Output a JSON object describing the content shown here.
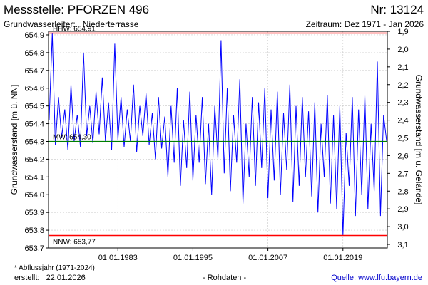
{
  "header": {
    "title": "Messstelle: PFORZEN 496",
    "nr": "Nr: 13124",
    "aquifer_label": "Grundwasserleiter:",
    "aquifer_value": "Niederterrasse",
    "period": "Zeitraum: Dez 1971 - Jan 2026"
  },
  "footer": {
    "note": "* Abflussjahr (1971-2024)",
    "created_label": "erstellt:",
    "created_date": "22.01.2026",
    "rawdata": "- Rohdaten -",
    "source_label": "Quelle:",
    "source_url": "www.lfu.bayern.de"
  },
  "colors": {
    "series": "#0000ff",
    "hhw_line": "#ff0000",
    "nnw_line": "#ff0000",
    "mw_line": "#008000",
    "grid": "#c8c8c8"
  },
  "chart_data": {
    "type": "line",
    "ylabel_left": "Grundwasserstand [m ü. NN]",
    "ylabel_right": "Grundwasserstand [m u. Gelände]",
    "ylim_left": [
      653.7,
      654.92
    ],
    "ylim_right": [
      3.12,
      1.9
    ],
    "xlim": [
      1971.9,
      2026.1
    ],
    "grid": true,
    "y_ticks_left": [
      "653,7",
      "653,8",
      "653,9",
      "654,0",
      "654,1",
      "654,2",
      "654,3",
      "654,4",
      "654,5",
      "654,6",
      "654,7",
      "654,8",
      "654,9"
    ],
    "y_ticks_right": [
      "1,9",
      "2,0",
      "2,1",
      "2,2",
      "2,3",
      "2,4",
      "2,5",
      "2,6",
      "2,7",
      "2,8",
      "2,9",
      "3,0",
      "3,1"
    ],
    "x_ticks": [
      {
        "label": "01.01.1983",
        "x": 1983.0
      },
      {
        "label": "01.01.1995",
        "x": 1995.0
      },
      {
        "label": "01.01.2007",
        "x": 2007.0
      },
      {
        "label": "01.01.2019",
        "x": 2019.0
      }
    ],
    "reference_lines": [
      {
        "label": "HHW: 654,91",
        "y": 654.91
      },
      {
        "label": "MW: 654,30",
        "y": 654.3
      },
      {
        "label": "NNW: 653,77",
        "y": 653.77
      }
    ],
    "series": [
      {
        "x": [
          1972.0,
          1972.5,
          1973.0,
          1973.5,
          1974.0,
          1974.5,
          1975.0,
          1975.5,
          1976.0,
          1976.5,
          1977.0,
          1977.5,
          1978.0,
          1978.5,
          1979.0,
          1979.5,
          1980.0,
          1980.5,
          1981.0,
          1981.5,
          1982.0,
          1982.5,
          1983.0,
          1983.5,
          1984.0,
          1984.5,
          1985.0,
          1985.5,
          1986.0,
          1986.5,
          1987.0,
          1987.5,
          1988.0,
          1988.5,
          1989.0,
          1989.5,
          1990.0,
          1990.5,
          1991.0,
          1991.5,
          1992.0,
          1992.5,
          1993.0,
          1993.5,
          1994.0,
          1994.5,
          1995.0,
          1995.5,
          1996.0,
          1996.5,
          1997.0,
          1997.5,
          1998.0,
          1998.5,
          1999.0,
          1999.5,
          2000.0,
          2000.5,
          2001.0,
          2001.5,
          2002.0,
          2002.5,
          2003.0,
          2003.5,
          2004.0,
          2004.5,
          2005.0,
          2005.5,
          2006.0,
          2006.5,
          2007.0,
          2007.5,
          2008.0,
          2008.5,
          2009.0,
          2009.5,
          2010.0,
          2010.5,
          2011.0,
          2011.5,
          2012.0,
          2012.5,
          2013.0,
          2013.5,
          2014.0,
          2014.5,
          2015.0,
          2015.5,
          2016.0,
          2016.5,
          2017.0,
          2017.5,
          2018.0,
          2018.5,
          2019.0,
          2019.5,
          2020.0,
          2020.5,
          2021.0,
          2021.5,
          2022.0,
          2022.5,
          2023.0,
          2023.5,
          2024.0,
          2024.5,
          2025.0,
          2025.5,
          2026.0
        ],
        "y": [
          654.42,
          654.91,
          654.28,
          654.55,
          654.32,
          654.48,
          654.25,
          654.62,
          654.3,
          654.45,
          654.27,
          654.8,
          654.33,
          654.5,
          654.29,
          654.58,
          654.34,
          654.66,
          654.3,
          654.52,
          654.25,
          654.85,
          654.31,
          654.55,
          654.27,
          654.48,
          654.3,
          654.62,
          654.24,
          654.5,
          654.33,
          654.57,
          654.28,
          654.46,
          654.2,
          654.55,
          654.26,
          654.44,
          654.1,
          654.5,
          654.18,
          654.6,
          654.05,
          654.42,
          654.15,
          654.58,
          654.08,
          654.45,
          654.18,
          654.55,
          654.06,
          654.4,
          654.0,
          654.5,
          654.2,
          654.87,
          654.12,
          654.6,
          654.02,
          654.45,
          654.18,
          654.65,
          653.95,
          654.4,
          654.1,
          654.55,
          654.05,
          654.52,
          654.15,
          654.6,
          653.98,
          654.48,
          654.08,
          654.58,
          654.0,
          654.46,
          654.14,
          654.62,
          653.96,
          654.5,
          654.05,
          654.55,
          654.1,
          654.47,
          653.99,
          654.52,
          653.9,
          654.4,
          654.1,
          654.56,
          653.95,
          654.45,
          653.92,
          654.5,
          653.77,
          654.35,
          654.05,
          654.55,
          653.88,
          654.48,
          654.0,
          654.56,
          653.92,
          654.4,
          654.02,
          654.75,
          653.88,
          654.45,
          654.3
        ]
      }
    ]
  }
}
